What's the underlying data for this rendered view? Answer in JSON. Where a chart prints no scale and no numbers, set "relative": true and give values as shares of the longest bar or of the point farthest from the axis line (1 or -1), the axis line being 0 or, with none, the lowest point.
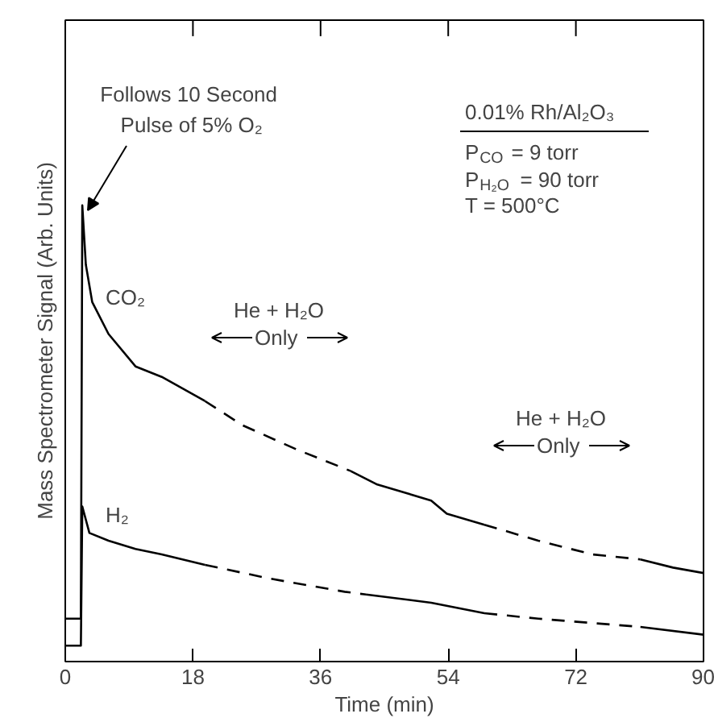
{
  "chart_data": {
    "type": "line",
    "relative": true,
    "xlabel": "Time (min)",
    "ylabel": "Mass Spectrometer Signal (Arb. Units)",
    "xlim": [
      0,
      90
    ],
    "xticks": [
      0,
      18,
      36,
      54,
      72,
      90
    ],
    "tick_labels": "x",
    "series": [
      {
        "color": "#000000",
        "line_style": "solid",
        "x": [
          0,
          2.2,
          2.4,
          2.9,
          3.8,
          6.1,
          9.9,
          13.6,
          19.7
        ],
        "values": [
          0.094,
          0.094,
          1.0,
          0.87,
          0.788,
          0.718,
          0.647,
          0.624,
          0.571
        ]
      },
      {
        "color": "#000000",
        "line_style": "dashed",
        "x": [
          19.7,
          25,
          32.6,
          40.2
        ],
        "values": [
          0.571,
          0.518,
          0.465,
          0.418
        ]
      },
      {
        "color": "#000000",
        "line_style": "solid",
        "x": [
          40.2,
          44,
          51.6,
          53.8,
          59.1
        ],
        "values": [
          0.418,
          0.388,
          0.353,
          0.324,
          0.3
        ]
      },
      {
        "color": "#000000",
        "line_style": "dashed",
        "x": [
          59.1,
          66.7,
          74.3,
          81.1
        ],
        "values": [
          0.3,
          0.265,
          0.235,
          0.224
        ]
      },
      {
        "color": "#000000",
        "line_style": "solid",
        "x": [
          81.1,
          85.7,
          90
        ],
        "values": [
          0.224,
          0.206,
          0.194
        ]
      },
      {
        "color": "#000000",
        "line_style": "solid",
        "x": [
          0,
          2.2,
          2.4,
          3.4,
          6.1,
          9.9,
          13.6,
          19.7
        ],
        "values": [
          0.035,
          0.035,
          0.34,
          0.282,
          0.265,
          0.247,
          0.235,
          0.212
        ]
      },
      {
        "color": "#000000",
        "line_style": "dashed",
        "x": [
          19.7,
          28.8,
          39.4,
          42.4
        ],
        "values": [
          0.212,
          0.182,
          0.153,
          0.147
        ]
      },
      {
        "color": "#000000",
        "line_style": "solid",
        "x": [
          42.4,
          51.6,
          59.1
        ],
        "values": [
          0.147,
          0.129,
          0.106
        ]
      },
      {
        "color": "#000000",
        "line_style": "dashed",
        "x": [
          59.1,
          66.7,
          81.1
        ],
        "values": [
          0.106,
          0.094,
          0.076
        ]
      },
      {
        "color": "#000000",
        "line_style": "solid",
        "x": [
          81.1,
          90
        ],
        "values": [
          0.076,
          0.059
        ]
      }
    ],
    "annotations": [
      "Follows 10 Second",
      "Pulse of 5% O₂",
      "CO₂",
      "H₂",
      "He + H₂O",
      "Only",
      "He + H₂O",
      "Only",
      "0.01% Rh/Al₂O₃",
      "P$_{CO}$ = 9 torr",
      "P$_{H₂O}$ = 90 torr",
      "T = 500°C"
    ]
  }
}
